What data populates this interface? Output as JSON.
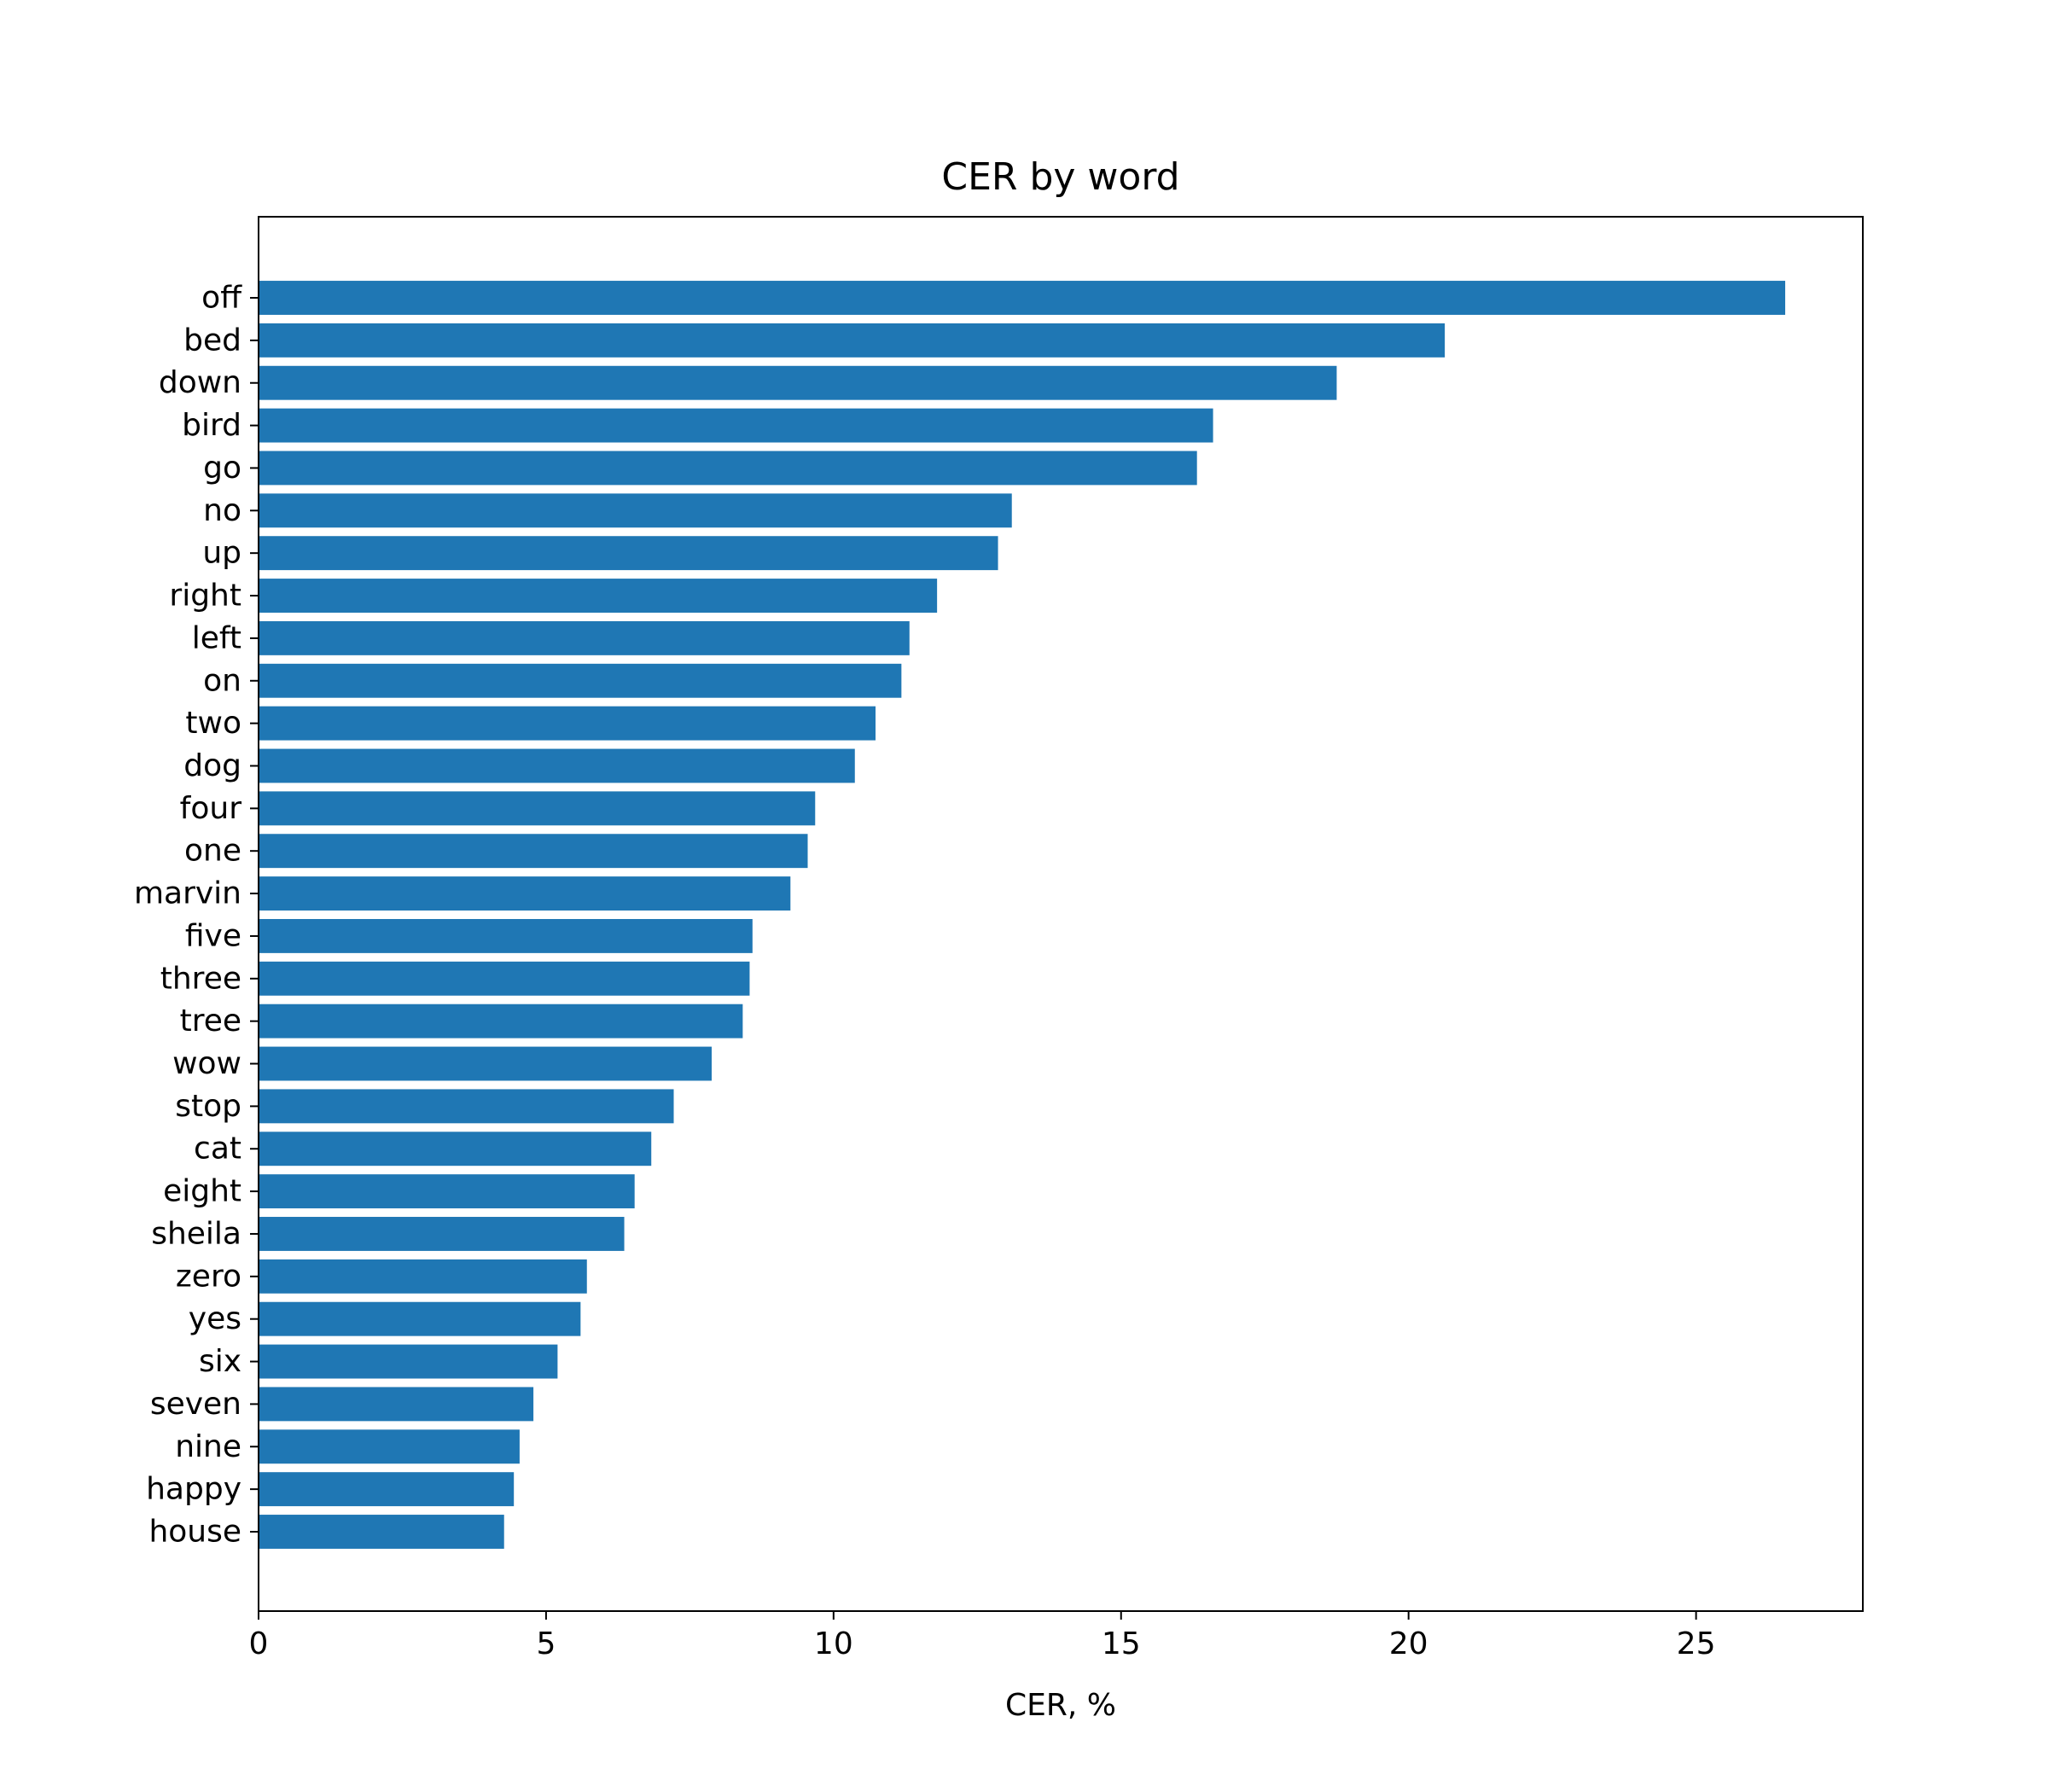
{
  "chart_data": {
    "type": "bar",
    "orientation": "horizontal",
    "title": "CER by word",
    "xlabel": "CER, %",
    "ylabel": "",
    "xlim": [
      0,
      27.9
    ],
    "xticks": [
      0,
      5,
      10,
      15,
      20,
      25
    ],
    "grid": false,
    "bar_color": "#1f77b4",
    "categories": [
      "off",
      "bed",
      "down",
      "bird",
      "go",
      "no",
      "up",
      "right",
      "left",
      "on",
      "two",
      "dog",
      "four",
      "one",
      "marvin",
      "five",
      "three",
      "tree",
      "wow",
      "stop",
      "cat",
      "eight",
      "sheila",
      "zero",
      "yes",
      "six",
      "seven",
      "nine",
      "happy",
      "house"
    ],
    "values": [
      26.55,
      20.63,
      18.75,
      16.6,
      16.32,
      13.1,
      12.86,
      11.8,
      11.32,
      11.18,
      10.73,
      10.37,
      9.68,
      9.55,
      9.25,
      8.59,
      8.54,
      8.42,
      7.88,
      7.22,
      6.83,
      6.54,
      6.36,
      5.71,
      5.6,
      5.2,
      4.78,
      4.54,
      4.44,
      4.27
    ]
  }
}
